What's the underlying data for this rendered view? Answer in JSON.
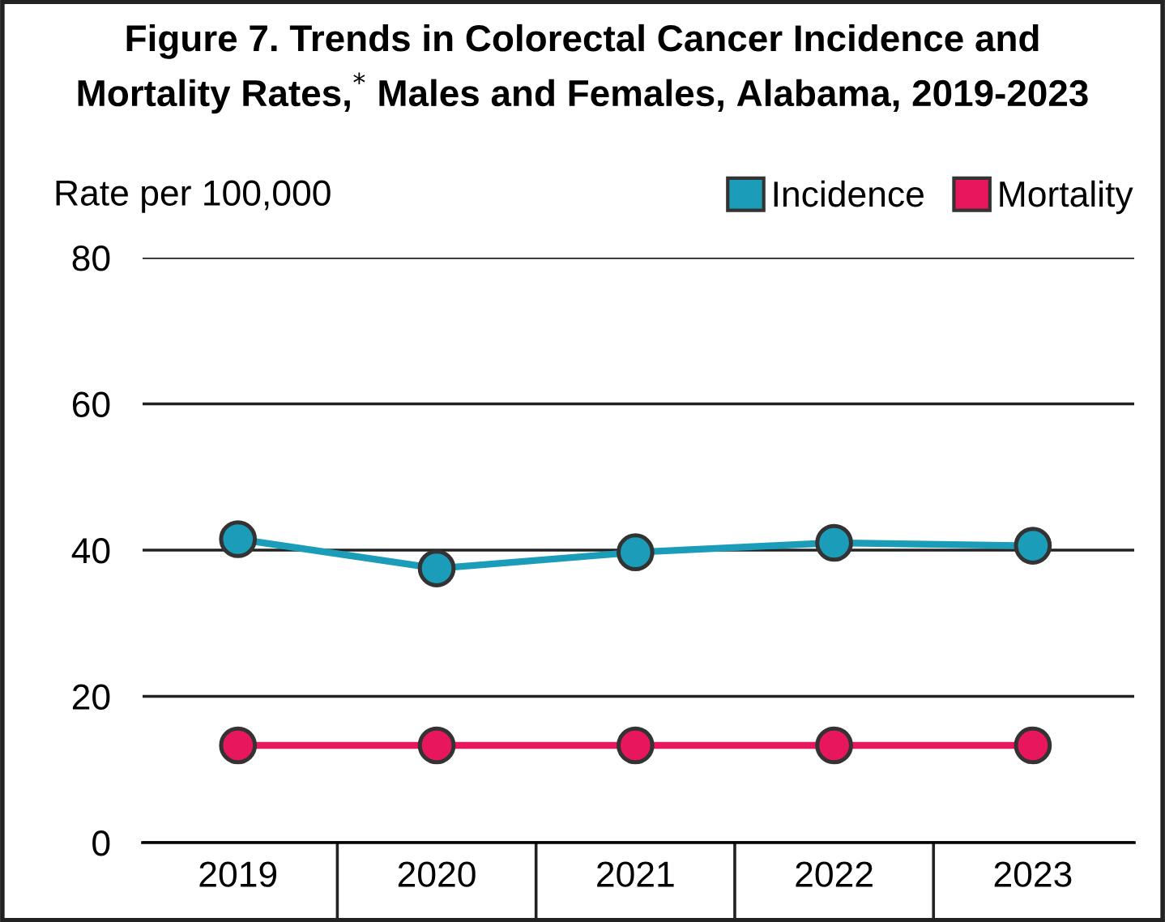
{
  "chart_data": {
    "type": "line",
    "title": "Figure 7. Trends in Colorectal Cancer Incidence and\nMortality Rates,$^{*}$ Males and Females, Alabama, 2019-2023",
    "ylabel": "Rate per 100,000",
    "categories": [
      "2019",
      "2020",
      "2021",
      "2022",
      "2023"
    ],
    "series": [
      {
        "name": "Incidence",
        "color": "#1b9cb8",
        "values": [
          41.5,
          37.5,
          39.7,
          41.0,
          40.6
        ]
      },
      {
        "name": "Mortality",
        "color": "#e8175d",
        "values": [
          13.3,
          13.3,
          13.3,
          13.3,
          13.3
        ]
      }
    ],
    "ylim": [
      0,
      80
    ],
    "yticks": [
      0,
      20,
      40,
      60,
      80
    ],
    "grid": "y",
    "legend": "top right",
    "marker": "circle",
    "line_style": "solid"
  }
}
